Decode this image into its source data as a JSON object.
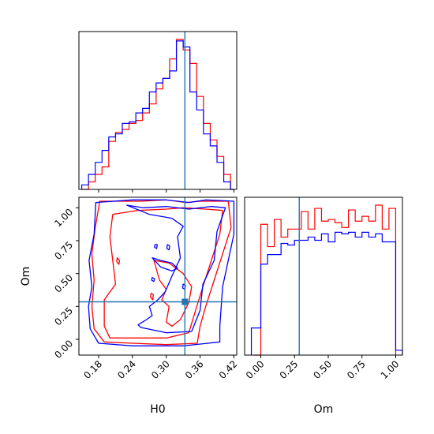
{
  "chart_data": {
    "type": "corner",
    "parameters": [
      "H0",
      "Om"
    ],
    "truths": {
      "H0": 0.333,
      "Om": 0.285
    },
    "colors": {
      "red": "#ff0000",
      "blue": "#0000ff",
      "truth": "#1f77b4"
    },
    "panels": [
      {
        "id": "hist_H0",
        "type": "histogram",
        "param": "H0",
        "xlim": [
          0.145,
          0.425
        ],
        "show_x_ticks": false,
        "series": [
          {
            "color": "red",
            "edges": [
              0.15,
              0.162,
              0.174,
              0.186,
              0.198,
              0.21,
              0.222,
              0.234,
              0.246,
              0.258,
              0.27,
              0.282,
              0.294,
              0.306,
              0.318,
              0.33,
              0.342,
              0.354,
              0.366,
              0.378,
              0.39,
              0.402,
              0.414,
              0.42
            ],
            "counts": [
              0,
              0.05,
              0.1,
              0.15,
              0.32,
              0.38,
              0.4,
              0.44,
              0.46,
              0.51,
              0.57,
              0.67,
              0.74,
              0.87,
              1.0,
              0.93,
              0.84,
              0.62,
              0.44,
              0.33,
              0.22,
              0.1,
              0
            ]
          },
          {
            "color": "blue",
            "edges": [
              0.15,
              0.162,
              0.174,
              0.186,
              0.198,
              0.21,
              0.222,
              0.234,
              0.246,
              0.258,
              0.27,
              0.282,
              0.294,
              0.306,
              0.318,
              0.33,
              0.342,
              0.354,
              0.366,
              0.378,
              0.39,
              0.402,
              0.414,
              0.42
            ],
            "counts": [
              0.03,
              0.1,
              0.18,
              0.26,
              0.35,
              0.37,
              0.44,
              0.45,
              0.51,
              0.54,
              0.65,
              0.71,
              0.74,
              0.79,
              0.99,
              0.95,
              0.65,
              0.53,
              0.37,
              0.29,
              0.18,
              0.05,
              0
            ]
          }
        ]
      },
      {
        "id": "contour_H0_Om",
        "type": "contour",
        "xparam": "H0",
        "yparam": "Om",
        "xlim": [
          0.145,
          0.425
        ],
        "ylim": [
          -0.12,
          1.08
        ],
        "xticks": [
          0.18,
          0.24,
          0.3,
          0.36,
          0.42
        ],
        "xticklabels": [
          "0.18",
          "0.24",
          "0.30",
          "0.36",
          "0.42"
        ],
        "yticks": [
          0.0,
          0.25,
          0.5,
          0.75,
          1.0
        ],
        "yticklabels": [
          "0.00",
          "0.25",
          "0.50",
          "0.75",
          "1.00"
        ],
        "xlabel": "H0",
        "ylabel": "Om",
        "series": [
          {
            "color": "red",
            "paths": [
              [
                [
                  0.182,
                  1.05
                ],
                [
                  0.255,
                  1.05
                ],
                [
                  0.3,
                  1.06
                ],
                [
                  0.335,
                  1.04
                ],
                [
                  0.36,
                  1.05
                ],
                [
                  0.41,
                  1.05
                ],
                [
                  0.415,
                  0.85
                ],
                [
                  0.4,
                  0.65
                ],
                [
                  0.385,
                  0.45
                ],
                [
                  0.37,
                  0.25
                ],
                [
                  0.36,
                  0.1
                ],
                [
                  0.355,
                  -0.03
                ],
                [
                  0.3,
                  -0.04
                ],
                [
                  0.24,
                  -0.03
                ],
                [
                  0.19,
                  -0.02
                ],
                [
                  0.172,
                  0.08
                ],
                [
                  0.168,
                  0.25
                ],
                [
                  0.172,
                  0.45
                ],
                [
                  0.168,
                  0.65
                ],
                [
                  0.174,
                  0.85
                ],
                [
                  0.182,
                  1.05
                ]
              ],
              [
                [
                  0.205,
                  0.95
                ],
                [
                  0.25,
                  0.98
                ],
                [
                  0.3,
                  0.99
                ],
                [
                  0.33,
                  1.0
                ],
                [
                  0.37,
                  0.99
                ],
                [
                  0.4,
                  0.98
                ],
                [
                  0.395,
                  0.8
                ],
                [
                  0.38,
                  0.6
                ],
                [
                  0.365,
                  0.4
                ],
                [
                  0.352,
                  0.22
                ],
                [
                  0.34,
                  0.05
                ],
                [
                  0.3,
                  0.01
                ],
                [
                  0.24,
                  0.01
                ],
                [
                  0.2,
                  0.01
                ],
                [
                  0.19,
                  0.1
                ],
                [
                  0.19,
                  0.3
                ],
                [
                  0.21,
                  0.42
                ],
                [
                  0.205,
                  0.6
                ],
                [
                  0.2,
                  0.78
                ],
                [
                  0.205,
                  0.95
                ]
              ],
              [
                [
                  0.278,
                  0.6
                ],
                [
                  0.305,
                  0.58
                ],
                [
                  0.33,
                  0.5
                ],
                [
                  0.345,
                  0.4
                ],
                [
                  0.34,
                  0.28
                ],
                [
                  0.325,
                  0.15
                ],
                [
                  0.31,
                  0.1
                ],
                [
                  0.3,
                  0.13
                ],
                [
                  0.305,
                  0.25
                ],
                [
                  0.292,
                  0.3
                ],
                [
                  0.3,
                  0.38
                ],
                [
                  0.288,
                  0.45
                ],
                [
                  0.278,
                  0.6
                ]
              ],
              [
                [
                  0.213,
                  0.62
                ],
                [
                  0.217,
                  0.6
                ],
                [
                  0.216,
                  0.57
                ],
                [
                  0.212,
                  0.59
                ],
                [
                  0.213,
                  0.62
                ]
              ],
              [
                [
                  0.273,
                  0.35
                ],
                [
                  0.277,
                  0.34
                ],
                [
                  0.276,
                  0.3
                ],
                [
                  0.272,
                  0.32
                ],
                [
                  0.273,
                  0.35
                ]
              ]
            ]
          },
          {
            "color": "blue",
            "paths": [
              [
                [
                  0.175,
                  1.04
                ],
                [
                  0.24,
                  1.06
                ],
                [
                  0.3,
                  1.06
                ],
                [
                  0.34,
                  1.04
                ],
                [
                  0.37,
                  1.06
                ],
                [
                  0.42,
                  1.05
                ],
                [
                  0.42,
                  0.8
                ],
                [
                  0.41,
                  0.6
                ],
                [
                  0.4,
                  0.4
                ],
                [
                  0.395,
                  0.1
                ],
                [
                  0.395,
                  -0.02
                ],
                [
                  0.33,
                  -0.05
                ],
                [
                  0.24,
                  -0.05
                ],
                [
                  0.18,
                  -0.03
                ],
                [
                  0.165,
                  0.08
                ],
                [
                  0.162,
                  0.25
                ],
                [
                  0.168,
                  0.4
                ],
                [
                  0.163,
                  0.6
                ],
                [
                  0.172,
                  0.8
                ],
                [
                  0.175,
                  1.04
                ]
              ],
              [
                [
                  0.23,
                  1.02
                ],
                [
                  0.26,
                  1.0
                ],
                [
                  0.3,
                  1.01
                ],
                [
                  0.34,
                  0.99
                ],
                [
                  0.38,
                  1.01
                ],
                [
                  0.405,
                  1.0
                ],
                [
                  0.39,
                  0.82
                ],
                [
                  0.385,
                  0.6
                ],
                [
                  0.365,
                  0.42
                ],
                [
                  0.36,
                  0.22
                ],
                [
                  0.345,
                  0.06
                ],
                [
                  0.3,
                  0.05
                ],
                [
                  0.255,
                  0.09
                ],
                [
                  0.25,
                  0.11
                ],
                [
                  0.265,
                  0.15
                ],
                [
                  0.275,
                  0.18
                ],
                [
                  0.27,
                  0.25
                ],
                [
                  0.285,
                  0.3
                ],
                [
                  0.298,
                  0.36
                ],
                [
                  0.31,
                  0.48
                ],
                [
                  0.325,
                  0.62
                ],
                [
                  0.32,
                  0.78
                ],
                [
                  0.33,
                  0.86
                ],
                [
                  0.31,
                  0.92
                ],
                [
                  0.27,
                  0.95
                ],
                [
                  0.23,
                  1.02
                ]
              ],
              [
                [
                  0.275,
                  0.62
                ],
                [
                  0.29,
                  0.6
                ],
                [
                  0.31,
                  0.58
                ],
                [
                  0.32,
                  0.54
                ],
                [
                  0.31,
                  0.52
                ],
                [
                  0.29,
                  0.55
                ],
                [
                  0.275,
                  0.62
                ]
              ],
              [
                [
                  0.28,
                  0.72
                ],
                [
                  0.284,
                  0.72
                ],
                [
                  0.283,
                  0.69
                ],
                [
                  0.279,
                  0.7
                ],
                [
                  0.28,
                  0.72
                ]
              ],
              [
                [
                  0.302,
                  0.72
                ],
                [
                  0.306,
                  0.71
                ],
                [
                  0.305,
                  0.68
                ],
                [
                  0.301,
                  0.69
                ],
                [
                  0.302,
                  0.72
                ]
              ],
              [
                [
                  0.275,
                  0.47
                ],
                [
                  0.279,
                  0.46
                ],
                [
                  0.278,
                  0.44
                ],
                [
                  0.274,
                  0.45
                ],
                [
                  0.275,
                  0.47
                ]
              ],
              [
                [
                  0.33,
                  0.42
                ],
                [
                  0.334,
                  0.41
                ],
                [
                  0.333,
                  0.38
                ],
                [
                  0.329,
                  0.39
                ],
                [
                  0.33,
                  0.42
                ]
              ]
            ]
          }
        ],
        "truth_marker": true
      },
      {
        "id": "hist_Om",
        "type": "histogram",
        "param": "Om",
        "xlim": [
          -0.12,
          1.05
        ],
        "xticks": [
          0.0,
          0.25,
          0.5,
          0.75,
          1.0
        ],
        "xticklabels": [
          "0.00",
          "0.25",
          "0.50",
          "0.75",
          "1.00"
        ],
        "xlabel": "Om",
        "series": [
          {
            "color": "red",
            "edges": [
              -0.05,
              0.0,
              0.05,
              0.1,
              0.15,
              0.2,
              0.25,
              0.3,
              0.35,
              0.4,
              0.45,
              0.5,
              0.55,
              0.6,
              0.65,
              0.7,
              0.75,
              0.8,
              0.85,
              0.9,
              0.95,
              1.0
            ],
            "counts": [
              0,
              0.82,
              0.68,
              0.85,
              0.74,
              0.79,
              0.79,
              0.9,
              0.79,
              0.92,
              0.84,
              0.85,
              0.83,
              0.8,
              0.91,
              0.84,
              0.87,
              0.84,
              0.94,
              0.79,
              0.92
            ]
          },
          {
            "color": "blue",
            "edges": [
              -0.07,
              0.0,
              0.05,
              0.1,
              0.15,
              0.2,
              0.25,
              0.3,
              0.35,
              0.4,
              0.45,
              0.5,
              0.55,
              0.6,
              0.65,
              0.7,
              0.75,
              0.8,
              0.85,
              0.9,
              0.95,
              1.0,
              1.05
            ],
            "counts": [
              0.17,
              0.57,
              0.63,
              0.63,
              0.7,
              0.69,
              0.72,
              0.72,
              0.74,
              0.72,
              0.76,
              0.71,
              0.77,
              0.76,
              0.77,
              0.74,
              0.77,
              0.74,
              0.76,
              0.71,
              0.71,
              0.03
            ]
          }
        ]
      }
    ]
  }
}
